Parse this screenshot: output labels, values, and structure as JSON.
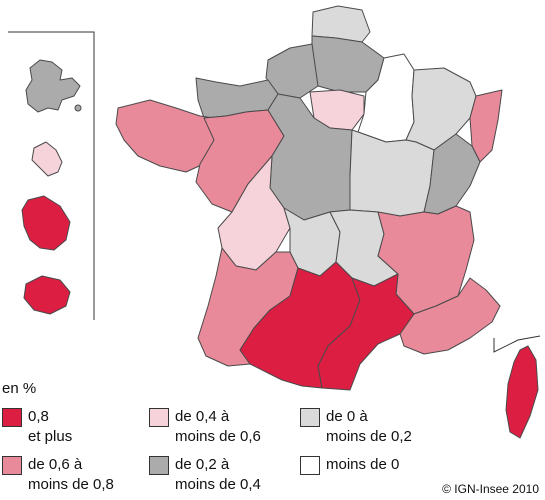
{
  "colors": {
    "c1": "#dc1e42",
    "c2": "#e88a9a",
    "c3": "#f6d3da",
    "c4": "#ababab",
    "c5": "#dadada",
    "c6": "#ffffff",
    "border": "#4a4a4a"
  },
  "legend": {
    "title": "en %",
    "items": [
      {
        "label": "0,8\net plus",
        "cls": "c1"
      },
      {
        "label": "de 0,6 à\nmoins de 0,8",
        "cls": "c2"
      },
      {
        "label": "de 0,4 à\nmoins de 0,6",
        "cls": "c3"
      },
      {
        "label": "de 0,2 à\nmoins de 0,4",
        "cls": "c4"
      },
      {
        "label": "de 0 à\nmoins de 0,2",
        "cls": "c5"
      },
      {
        "label": "moins de 0",
        "cls": "c6"
      }
    ]
  },
  "copyright": "© IGN-Insee 2010"
}
